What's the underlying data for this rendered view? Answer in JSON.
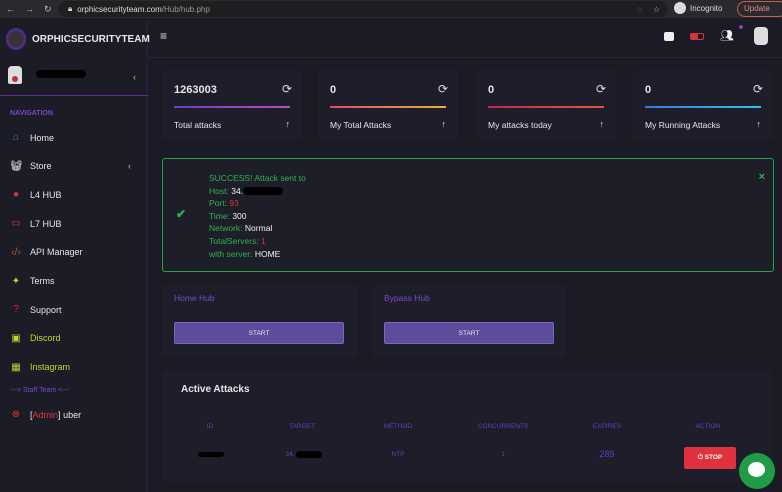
{
  "browser": {
    "url_domain": "orphicsecurityteam.com",
    "url_path": "/Hub/hub.php",
    "incognito": "Incognito",
    "update": "Update"
  },
  "brand": "ORPHICSECURITYTEAM",
  "sidebar": {
    "nav_heading": "NAVIGATION",
    "items": [
      {
        "label": "Home",
        "icon": "home-icon",
        "color": "#2f7ad6"
      },
      {
        "label": "Store",
        "icon": "basket-icon",
        "color": "#eeeeee"
      },
      {
        "label": "L4 HUB",
        "icon": "bomb-icon",
        "color": "#d8343c"
      },
      {
        "label": "L7 HUB",
        "icon": "battery-icon",
        "color": "#d8343c"
      },
      {
        "label": "API Manager",
        "icon": "code-icon",
        "color": "#b0603a"
      },
      {
        "label": "Terms",
        "icon": "satellite-icon",
        "color": "#e0c820"
      },
      {
        "label": "Support",
        "icon": "question-icon",
        "color": "#e0202a"
      },
      {
        "label": "Discord",
        "icon": "discord-icon",
        "color": "#c8d630"
      },
      {
        "label": "Instagram",
        "icon": "gift-icon",
        "color": "#c8d630"
      }
    ],
    "staff_heading": "---> Staff Team <---",
    "staff": {
      "bracket_open": "[",
      "role": "Admin",
      "bracket_close": "]",
      "name": "uber"
    }
  },
  "stats": [
    {
      "value": "1263003",
      "label": "Total attacks",
      "bar": "linear-gradient(90deg,#6a3fc8,#c04ab8)"
    },
    {
      "value": "0",
      "label": "My Total Attacks",
      "bar": "linear-gradient(90deg,#e04a6a,#e8b040)"
    },
    {
      "value": "0",
      "label": "My attacks today",
      "bar": "linear-gradient(90deg,#c02858,#e05a3a)"
    },
    {
      "value": "0",
      "label": "My Running Attacks",
      "bar": "linear-gradient(90deg,#3a7ae0,#3ac0e0)"
    }
  ],
  "alert": {
    "title": "SUCCESS! Attack sent to",
    "host_label": "Host:",
    "host": "34.",
    "port_label": "Port:",
    "port": "93",
    "time_label": "Time:",
    "time": "300",
    "network_label": "Network:",
    "network": "Normal",
    "servers_label": "TotalServers:",
    "servers": "1",
    "server_label": "with server:",
    "server": "HOME",
    "close": "×"
  },
  "hubs": [
    {
      "title": "Home Hub",
      "button": "START"
    },
    {
      "title": "Bypass Hub",
      "button": "START"
    }
  ],
  "active": {
    "title": "Active Attacks",
    "columns": [
      "ID",
      "TARGET",
      "METHOD",
      "CONCURRENTS",
      "EXPIRES",
      "ACTION"
    ],
    "rows": [
      {
        "target": "34.",
        "method": "NTP",
        "concurrents": "1",
        "expires": "289",
        "action": "STOP"
      }
    ]
  }
}
